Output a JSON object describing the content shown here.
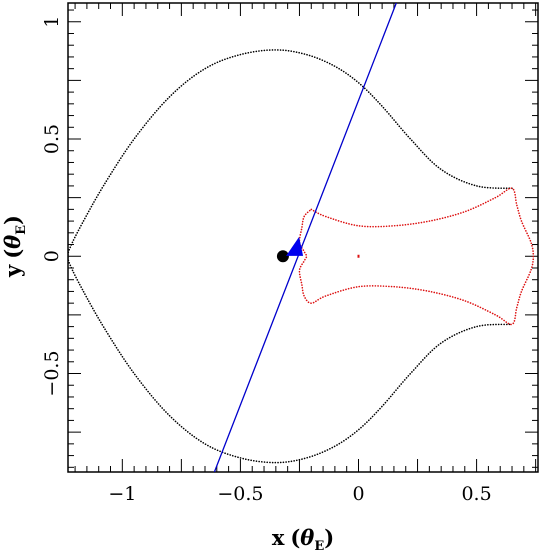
{
  "chart_data": {
    "type": "scatter",
    "xlabel": {
      "main": "x",
      "open": "(",
      "theta": "θ",
      "sub": "E",
      "close": ")"
    },
    "ylabel": {
      "main": "y",
      "open": "(",
      "theta": "θ",
      "sub": "E",
      "close": ")"
    },
    "xlim": [
      -1.23,
      0.76
    ],
    "ylim": [
      -0.92,
      1.08
    ],
    "x_ticks": [
      -1,
      -0.5,
      0,
      0.5
    ],
    "x_tick_labels": [
      "−1",
      "−0.5",
      "0",
      "0.5"
    ],
    "y_ticks": [
      -0.5,
      0,
      0.5,
      1
    ],
    "y_tick_labels": [
      "−0.5",
      "0",
      "0.5",
      "1"
    ],
    "grid": false,
    "colors": {
      "critical_curve": "#000000",
      "caustic": "#dd1111",
      "source_trajectory": "#0000cc",
      "source_marker": "#0000ee",
      "lens_marker": "#000000"
    },
    "series": [
      {
        "style": "dotted",
        "color_key": "critical_curve",
        "x": [
          0.65,
          0.5,
          0.35,
          0.22,
          0.1,
          0.0,
          -0.1,
          -0.22,
          -0.35,
          -0.5,
          -0.65,
          -0.8,
          -0.95,
          -1.08,
          -1.17,
          -1.22,
          -1.23,
          -1.22,
          -1.17,
          -1.08,
          -0.95,
          -0.8,
          -0.65,
          -0.5,
          -0.35,
          -0.22,
          -0.1,
          0.0,
          0.1,
          0.22,
          0.35,
          0.5,
          0.65
        ],
        "y": [
          0.29,
          0.3,
          0.37,
          0.5,
          0.64,
          0.74,
          0.81,
          0.86,
          0.88,
          0.86,
          0.8,
          0.68,
          0.5,
          0.3,
          0.14,
          0.04,
          0.0,
          -0.04,
          -0.14,
          -0.3,
          -0.5,
          -0.68,
          -0.8,
          -0.86,
          -0.88,
          -0.86,
          -0.81,
          -0.74,
          -0.64,
          -0.5,
          -0.37,
          -0.3,
          -0.29
        ]
      },
      {
        "style": "dotted",
        "color_key": "caustic",
        "x": [
          -0.2,
          -0.14,
          0.0,
          0.15,
          0.3,
          0.45,
          0.58,
          0.65,
          0.67,
          0.69,
          0.73,
          0.74,
          0.73,
          0.69,
          0.67,
          0.65,
          0.58,
          0.45,
          0.3,
          0.15,
          0.0,
          -0.14,
          -0.2,
          -0.23,
          -0.24,
          -0.25,
          -0.23,
          -0.22,
          -0.23,
          -0.25,
          -0.24,
          -0.23,
          -0.2
        ],
        "y": [
          0.2,
          0.17,
          0.13,
          0.13,
          0.15,
          0.19,
          0.25,
          0.29,
          0.22,
          0.15,
          0.06,
          0.0,
          -0.06,
          -0.15,
          -0.22,
          -0.29,
          -0.25,
          -0.19,
          -0.15,
          -0.13,
          -0.13,
          -0.17,
          -0.2,
          -0.17,
          -0.12,
          -0.06,
          -0.02,
          0.0,
          0.02,
          0.06,
          0.12,
          0.17,
          0.2
        ]
      },
      {
        "style": "line",
        "color_key": "source_trajectory",
        "x": [
          -0.61,
          0.16
        ],
        "y": [
          -0.92,
          1.08
        ]
      }
    ],
    "points": [
      {
        "marker": "filled-circle",
        "color_key": "lens_marker",
        "x": -0.32,
        "y": 0.0
      },
      {
        "marker": "filled-triangle",
        "color_key": "source_marker",
        "x": -0.26,
        "y": 0.04
      },
      {
        "marker": "small-dot",
        "color_key": "caustic",
        "x": 0.0,
        "y": 0.0
      }
    ]
  }
}
